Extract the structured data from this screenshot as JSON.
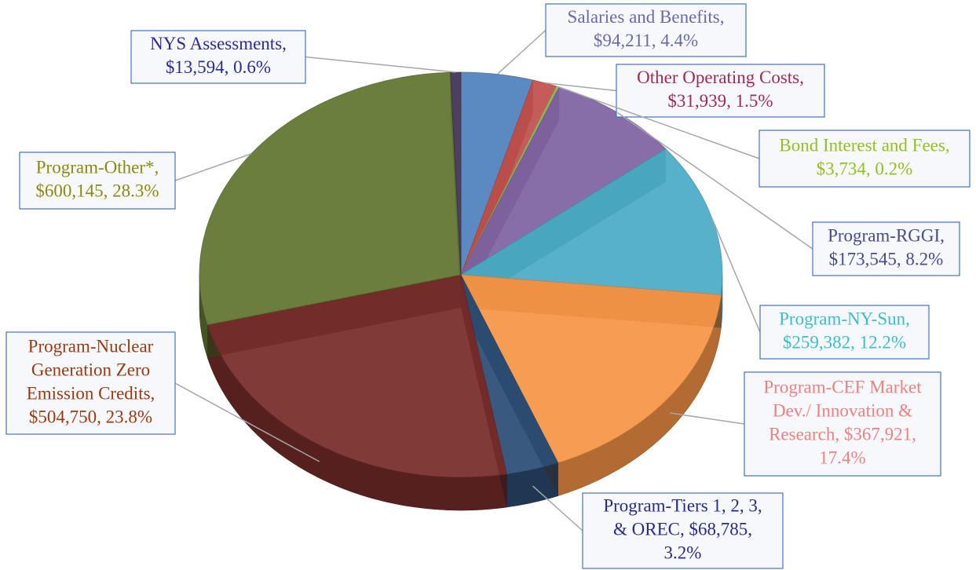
{
  "chart_data": {
    "type": "pie3d",
    "categories": [
      "Salaries and Benefits",
      "Other Operating Costs",
      "Bond Interest and Fees",
      "Program-RGGI",
      "Program-NY-Sun",
      "Program-CEF Market Dev./ Innovation & Research",
      "Program-Tiers 1, 2, 3, & OREC",
      "Program-Nuclear Generation Zero Emission Credits",
      "Program-Other*",
      "NYS Assessments"
    ],
    "values": [
      94211,
      31939,
      3734,
      173545,
      259382,
      367921,
      68785,
      504750,
      600145,
      13594
    ],
    "value_labels": [
      [
        "Salaries and Benefits,",
        "$94,211, 4.4%"
      ],
      [
        "Other Operating Costs,",
        "$31,939, 1.5%"
      ],
      [
        "Bond Interest and Fees,",
        "$3,734, 0.2%"
      ],
      [
        "Program-RGGI,",
        "$173,545, 8.2%"
      ],
      [
        "Program-NY-Sun,",
        "$259,382, 12.2%"
      ],
      [
        "Program-CEF Market",
        "Dev./ Innovation &",
        "Research, $367,921,",
        "17.4%"
      ],
      [
        "Program-Tiers 1, 2, 3,",
        "& OREC, $68,785,",
        "3.2%"
      ],
      [
        "Program-Nuclear",
        "Generation Zero",
        "Emission Credits,",
        "$504,750, 23.8%"
      ],
      [
        "Program-Other*,",
        "$600,145, 28.3%"
      ],
      [
        "NYS Assessments,",
        "$13,594, 0.6%"
      ]
    ],
    "colors": [
      "#4f81bd",
      "#c0504d",
      "#9bbb59",
      "#8064a2",
      "#4bacc6",
      "#f79646",
      "#2c4d75",
      "#772c2a",
      "#5f7530",
      "#403152"
    ],
    "label_colors": [
      "#6a6aaa",
      "#9e2a5a",
      "#92c020",
      "#4a4a8c",
      "#3cbec8",
      "#f08080",
      "#2a2a8c",
      "#9a3a10",
      "#8a8a10",
      "#2a2a9a"
    ]
  }
}
